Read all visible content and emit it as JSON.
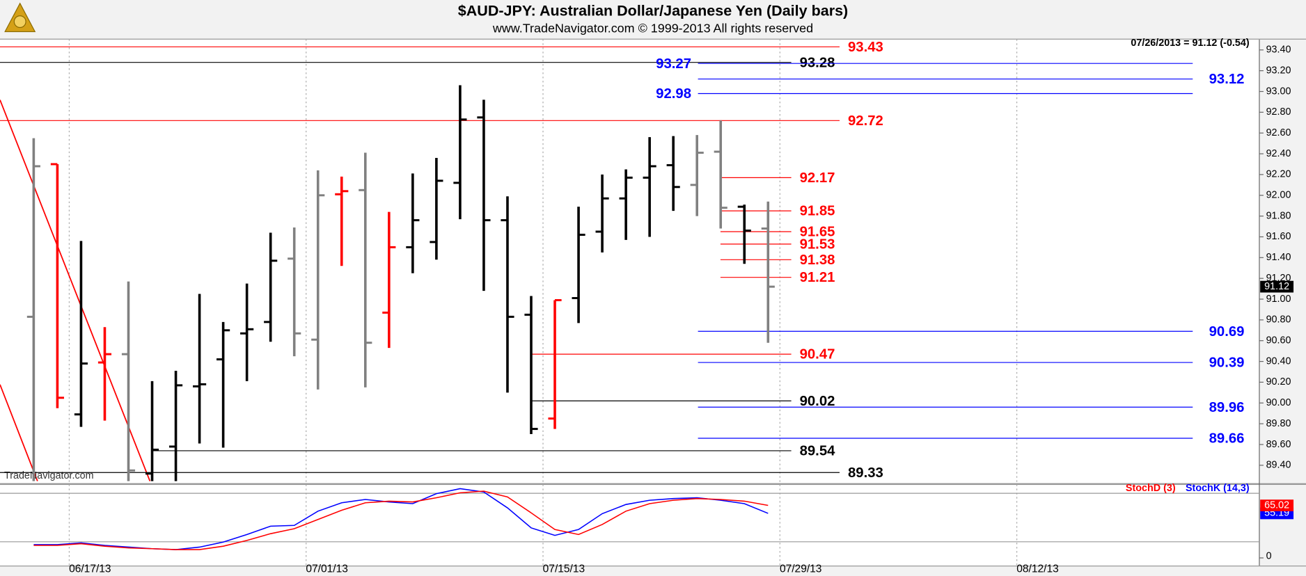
{
  "chart_data": [
    {
      "type": "ohlc",
      "title": "$AUD-JPY:  Australian Dollar/Japanese Yen  (Daily bars)",
      "subtitle": "www.TradeNavigator.com © 1999-2013 All rights reserved",
      "header_note": "07/26/2013 = 91.12 (-0.54)",
      "watermark": "TradeNavigator.com",
      "x": [
        "06/13/13",
        "06/14/13",
        "06/17/13",
        "06/18/13",
        "06/19/13",
        "06/20/13",
        "06/21/13",
        "06/24/13",
        "06/25/13",
        "06/26/13",
        "06/27/13",
        "06/28/13",
        "07/01/13",
        "07/02/13",
        "07/03/13",
        "07/04/13",
        "07/05/13",
        "07/08/13",
        "07/09/13",
        "07/10/13",
        "07/11/13",
        "07/12/13",
        "07/15/13",
        "07/16/13",
        "07/17/13",
        "07/18/13",
        "07/19/13",
        "07/22/13",
        "07/23/13",
        "07/24/13",
        "07/25/13",
        "07/26/13"
      ],
      "open": [
        90.83,
        92.3,
        89.89,
        90.39,
        90.47,
        89.32,
        89.58,
        90.16,
        90.42,
        90.67,
        90.78,
        91.39,
        90.61,
        92.01,
        92.05,
        90.87,
        91.5,
        91.55,
        92.12,
        92.75,
        91.76,
        90.85,
        89.85,
        91.01,
        91.65,
        91.97,
        92.17,
        92.29,
        92.1,
        92.42,
        91.89,
        91.68
      ],
      "high": [
        92.55,
        92.3,
        91.56,
        90.73,
        91.17,
        90.21,
        90.31,
        91.05,
        90.78,
        91.15,
        91.64,
        91.69,
        92.24,
        92.18,
        92.41,
        91.84,
        92.21,
        92.36,
        93.06,
        92.92,
        91.99,
        91.03,
        90.99,
        91.89,
        92.2,
        92.25,
        92.56,
        92.57,
        92.58,
        92.72,
        91.91,
        91.94
      ],
      "low": [
        89.1,
        89.95,
        89.77,
        89.83,
        89.22,
        89.1,
        89.15,
        89.61,
        89.57,
        90.21,
        90.59,
        90.45,
        90.13,
        91.32,
        90.15,
        90.53,
        91.25,
        91.38,
        91.77,
        91.08,
        90.1,
        89.7,
        89.75,
        90.77,
        91.45,
        91.57,
        91.6,
        91.85,
        91.8,
        91.68,
        91.34,
        90.58
      ],
      "close": [
        92.28,
        90.05,
        90.38,
        90.47,
        89.35,
        89.55,
        90.17,
        90.18,
        90.7,
        90.71,
        91.37,
        90.67,
        92.0,
        92.04,
        90.58,
        91.5,
        91.76,
        92.14,
        92.73,
        91.76,
        90.83,
        89.75,
        90.99,
        91.62,
        91.97,
        92.17,
        92.28,
        92.08,
        92.41,
        91.88,
        91.66,
        91.12
      ],
      "bar_colors": [
        "#808080",
        "#ff0000",
        "#000000",
        "#ff0000",
        "#808080",
        "#000000",
        "#000000",
        "#000000",
        "#000000",
        "#000000",
        "#000000",
        "#808080",
        "#808080",
        "#ff0000",
        "#808080",
        "#ff0000",
        "#000000",
        "#000000",
        "#000000",
        "#000000",
        "#000000",
        "#000000",
        "#ff0000",
        "#000000",
        "#000000",
        "#000000",
        "#000000",
        "#000000",
        "#808080",
        "#808080",
        "#000000",
        "#808080"
      ],
      "xlim": [
        "06/12/13",
        "08/23/13"
      ],
      "ylim": [
        89.25,
        93.5
      ],
      "yticks": [
        {
          "value": 89.4,
          "label": "89.40"
        },
        {
          "value": 89.6,
          "label": "89.60"
        },
        {
          "value": 89.8,
          "label": "89.80"
        },
        {
          "value": 90.0,
          "label": "90.00"
        },
        {
          "value": 90.2,
          "label": "90.20"
        },
        {
          "value": 90.4,
          "label": "90.40"
        },
        {
          "value": 90.6,
          "label": "90.60"
        },
        {
          "value": 90.8,
          "label": "90.80"
        },
        {
          "value": 91.0,
          "label": "91.00"
        },
        {
          "value": 91.2,
          "label": "91.20"
        },
        {
          "value": 91.4,
          "label": "91.40"
        },
        {
          "value": 91.6,
          "label": "91.60"
        },
        {
          "value": 91.8,
          "label": "91.80"
        },
        {
          "value": 92.0,
          "label": "92.00"
        },
        {
          "value": 92.2,
          "label": "92.20"
        },
        {
          "value": 92.4,
          "label": "92.40"
        },
        {
          "value": 92.6,
          "label": "92.60"
        },
        {
          "value": 92.8,
          "label": "92.80"
        },
        {
          "value": 93.0,
          "label": "93.00"
        },
        {
          "value": 93.2,
          "label": "93.20"
        },
        {
          "value": 93.4,
          "label": "93.40"
        }
      ],
      "levels": [
        {
          "value": 93.43,
          "color": "#ff0000"
        },
        {
          "value": 93.28,
          "color": "#000000"
        },
        {
          "value": 93.27,
          "color": "#0000ff"
        },
        {
          "value": 93.12,
          "color": "#0000ff"
        },
        {
          "value": 92.98,
          "color": "#0000ff"
        },
        {
          "value": 92.72,
          "color": "#ff0000"
        },
        {
          "value": 92.17,
          "color": "#ff0000"
        },
        {
          "value": 91.85,
          "color": "#ff0000"
        },
        {
          "value": 91.65,
          "color": "#ff0000"
        },
        {
          "value": 91.53,
          "color": "#ff0000"
        },
        {
          "value": 91.38,
          "color": "#ff0000"
        },
        {
          "value": 91.21,
          "color": "#ff0000"
        },
        {
          "value": 90.69,
          "color": "#0000ff"
        },
        {
          "value": 90.47,
          "color": "#ff0000"
        },
        {
          "value": 90.39,
          "color": "#0000ff"
        },
        {
          "value": 90.02,
          "color": "#000000"
        },
        {
          "value": 89.96,
          "color": "#0000ff"
        },
        {
          "value": 89.66,
          "color": "#0000ff"
        },
        {
          "value": 89.54,
          "color": "#000000"
        },
        {
          "value": 89.33,
          "color": "#000000"
        }
      ]
    },
    {
      "type": "line",
      "x": [
        "06/13/13",
        "06/14/13",
        "06/17/13",
        "06/18/13",
        "06/19/13",
        "06/20/13",
        "06/21/13",
        "06/24/13",
        "06/25/13",
        "06/26/13",
        "06/27/13",
        "06/28/13",
        "07/01/13",
        "07/02/13",
        "07/03/13",
        "07/04/13",
        "07/05/13",
        "07/08/13",
        "07/09/13",
        "07/10/13",
        "07/11/13",
        "07/12/13",
        "07/15/13",
        "07/16/13",
        "07/17/13",
        "07/18/13",
        "07/19/13",
        "07/22/13",
        "07/23/13",
        "07/24/13",
        "07/25/13",
        "07/26/13"
      ],
      "series": [
        {
          "name": "StochD (3)",
          "color": "#ff0000",
          "values": [
            15.5,
            15.5,
            17.6,
            14.5,
            12.4,
            11.4,
            10.3,
            10.3,
            14.5,
            21.7,
            30.0,
            36.2,
            47.6,
            59.0,
            68.3,
            70.3,
            69.3,
            74.5,
            80.7,
            82.7,
            75.5,
            55.8,
            35.2,
            29.0,
            41.4,
            57.9,
            67.2,
            71.4,
            73.5,
            72.4,
            70.3,
            65.02
          ]
        },
        {
          "name": "StochK (14,3)",
          "color": "#0000ff",
          "values": [
            16.5,
            16.5,
            18.6,
            15.5,
            13.4,
            11.4,
            10.3,
            13.4,
            19.6,
            29.0,
            39.3,
            40.3,
            57.9,
            68.3,
            72.4,
            69.3,
            67.2,
            79.6,
            85.8,
            81.7,
            62.0,
            37.2,
            27.9,
            35.2,
            54.8,
            66.2,
            71.4,
            73.5,
            74.5,
            71.4,
            67.2,
            55.19
          ]
        }
      ],
      "xlim": [
        "06/12/13",
        "08/23/13"
      ],
      "xticks": [
        "06/17/13",
        "07/01/13",
        "07/15/13",
        "07/29/13",
        "08/12/13"
      ],
      "ylim": [
        -10,
        90
      ],
      "yticks": [
        0
      ],
      "levels": [
        20,
        80
      ]
    }
  ]
}
